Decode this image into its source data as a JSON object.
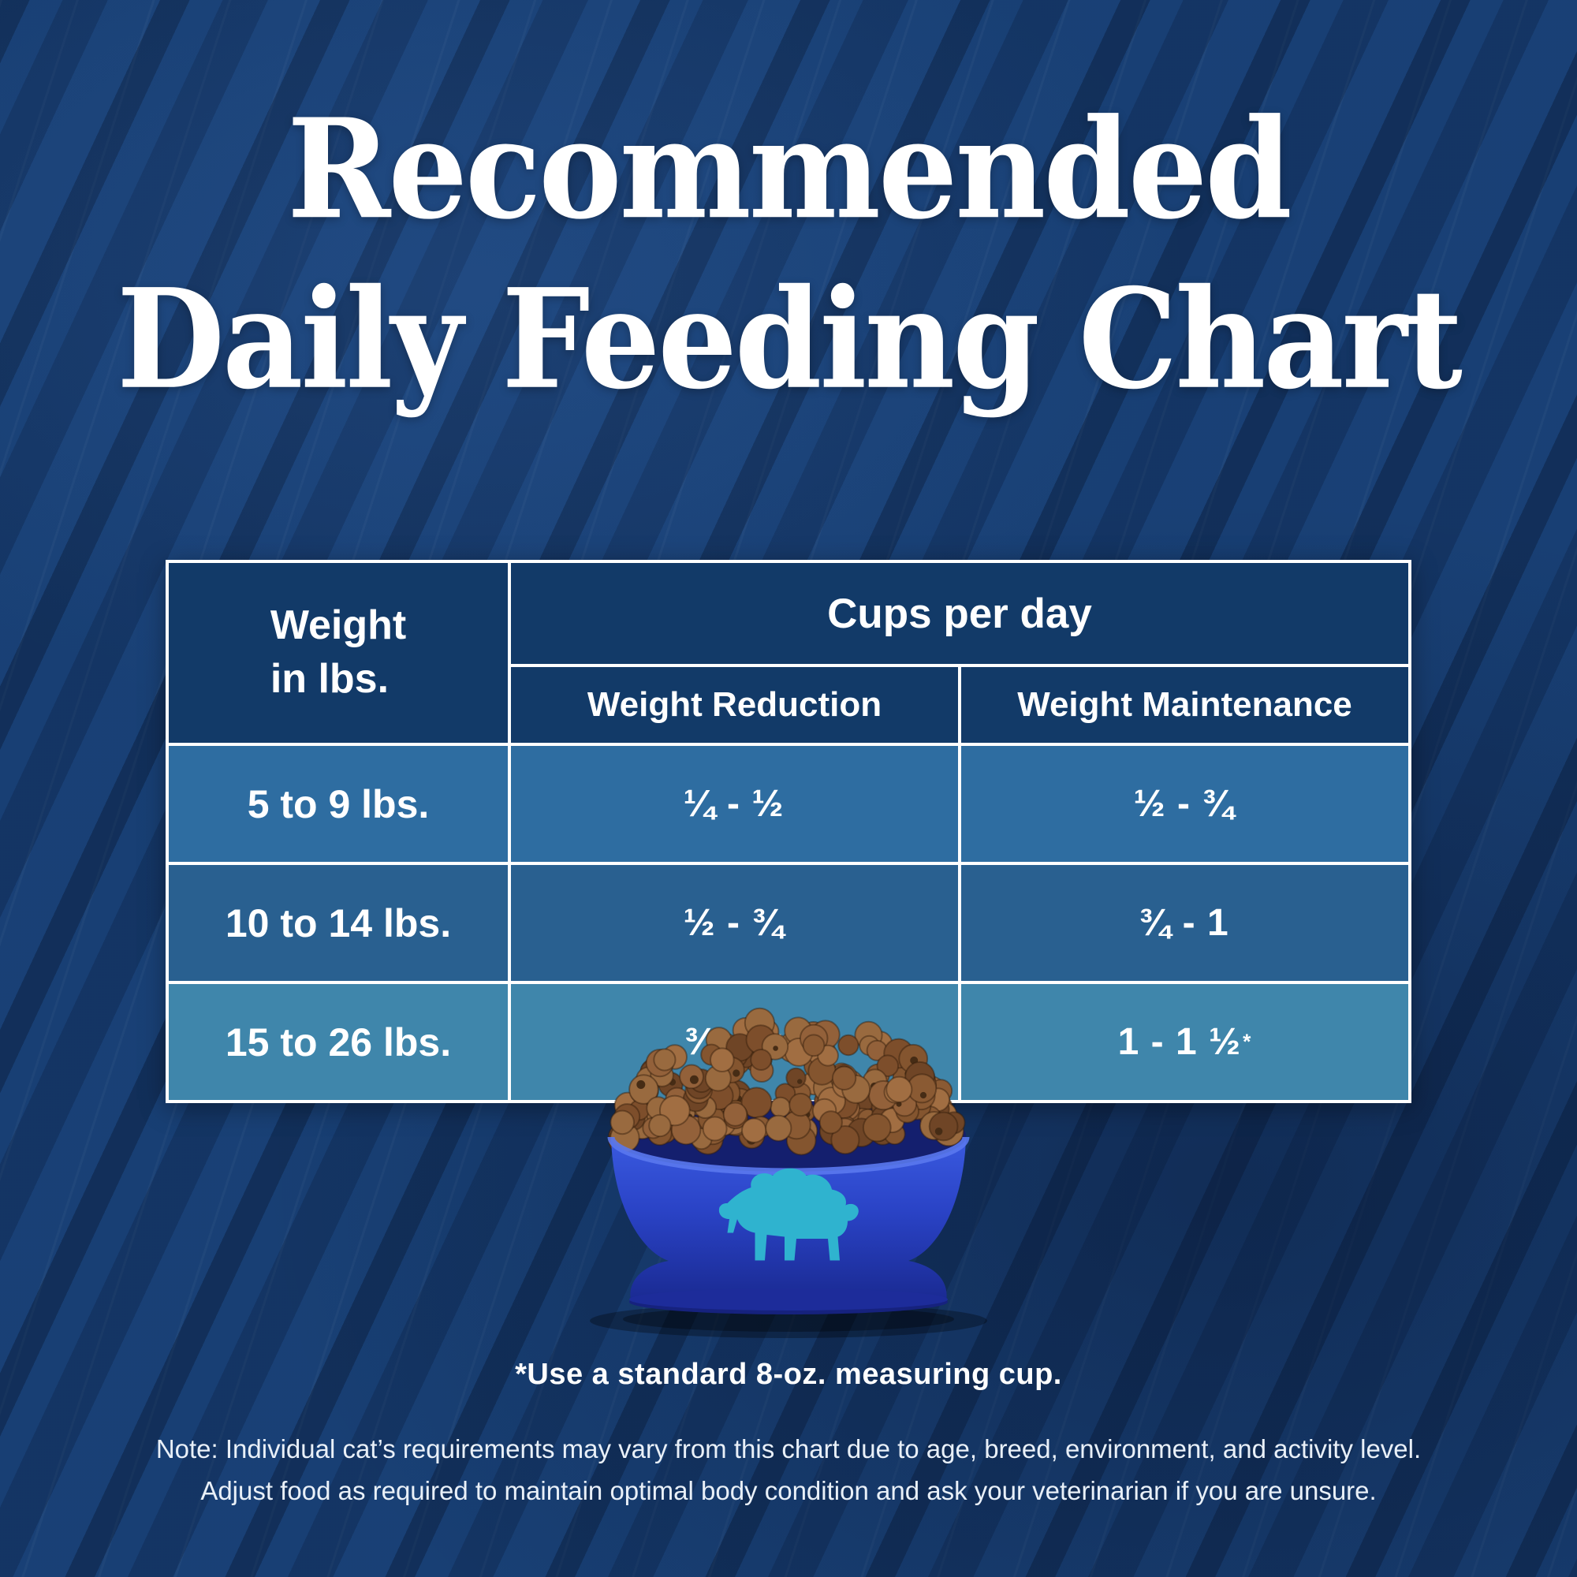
{
  "title": {
    "line1": "Recommended",
    "line2": "Daily Feeding Chart"
  },
  "table": {
    "weight_header": "Weight\nin lbs.",
    "cups_header": "Cups per day",
    "subheaders": {
      "reduction": "Weight Reduction",
      "maintenance": "Weight Maintenance"
    },
    "rows": [
      {
        "weight": "5 to 9 lbs.",
        "reduction": {
          "text": "¼ - ½",
          "sup": ""
        },
        "maintenance": {
          "text": "½ - ¾",
          "sup": ""
        }
      },
      {
        "weight": "10 to 14 lbs.",
        "reduction": {
          "text": "½ - ¾",
          "sup": ""
        },
        "maintenance": {
          "text": "¾ - 1",
          "sup": ""
        }
      },
      {
        "weight": "15 to 26 lbs.",
        "reduction": {
          "text": "¾ - 1",
          "sup": "*"
        },
        "maintenance": {
          "text": "1 - 1 ½",
          "sup": "*"
        }
      }
    ]
  },
  "footnote": "*Use a standard 8-oz. measuring cup.",
  "note": {
    "line1": "Note: Individual cat’s requirements may vary from this chart due to age, breed, environment, and activity level.",
    "line2": "Adjust food as required to maintain optimal body condition and ask your veterinarian if you are unsure."
  },
  "illustration": {
    "bowl_label": "pet food bowl with kibble",
    "logo_name": "buffalo-logo"
  },
  "colors": {
    "background_navy": "#173E72",
    "table_header_navy": "#123A68",
    "row_blue": "#2E6DA1",
    "row_dark_blue": "#296090",
    "row_teal": "#3F86AB",
    "table_border": "#FFFFFF",
    "bowl_blue": "#2A43C6",
    "buffalo_teal": "#2FB3CF",
    "kibble_brown": "#8A5A33",
    "text": "#FFFFFF"
  },
  "chart_data": {
    "type": "table",
    "title": "Recommended Daily Feeding Chart",
    "columns": [
      "Weight in lbs.",
      "Weight Reduction (cups per day)",
      "Weight Maintenance (cups per day)"
    ],
    "rows": [
      [
        "5 to 9 lbs.",
        "¼ - ½",
        "½ - ¾"
      ],
      [
        "10 to 14 lbs.",
        "½ - ¾",
        "¾ - 1"
      ],
      [
        "15 to 26 lbs.",
        "¾ - 1*",
        "1 - 1 ½*"
      ]
    ],
    "footnote": "*Use a standard 8-oz. measuring cup.",
    "note": "Individual cat’s requirements may vary from this chart due to age, breed, environment, and activity level. Adjust food as required to maintain optimal body condition and ask your veterinarian if you are unsure."
  }
}
